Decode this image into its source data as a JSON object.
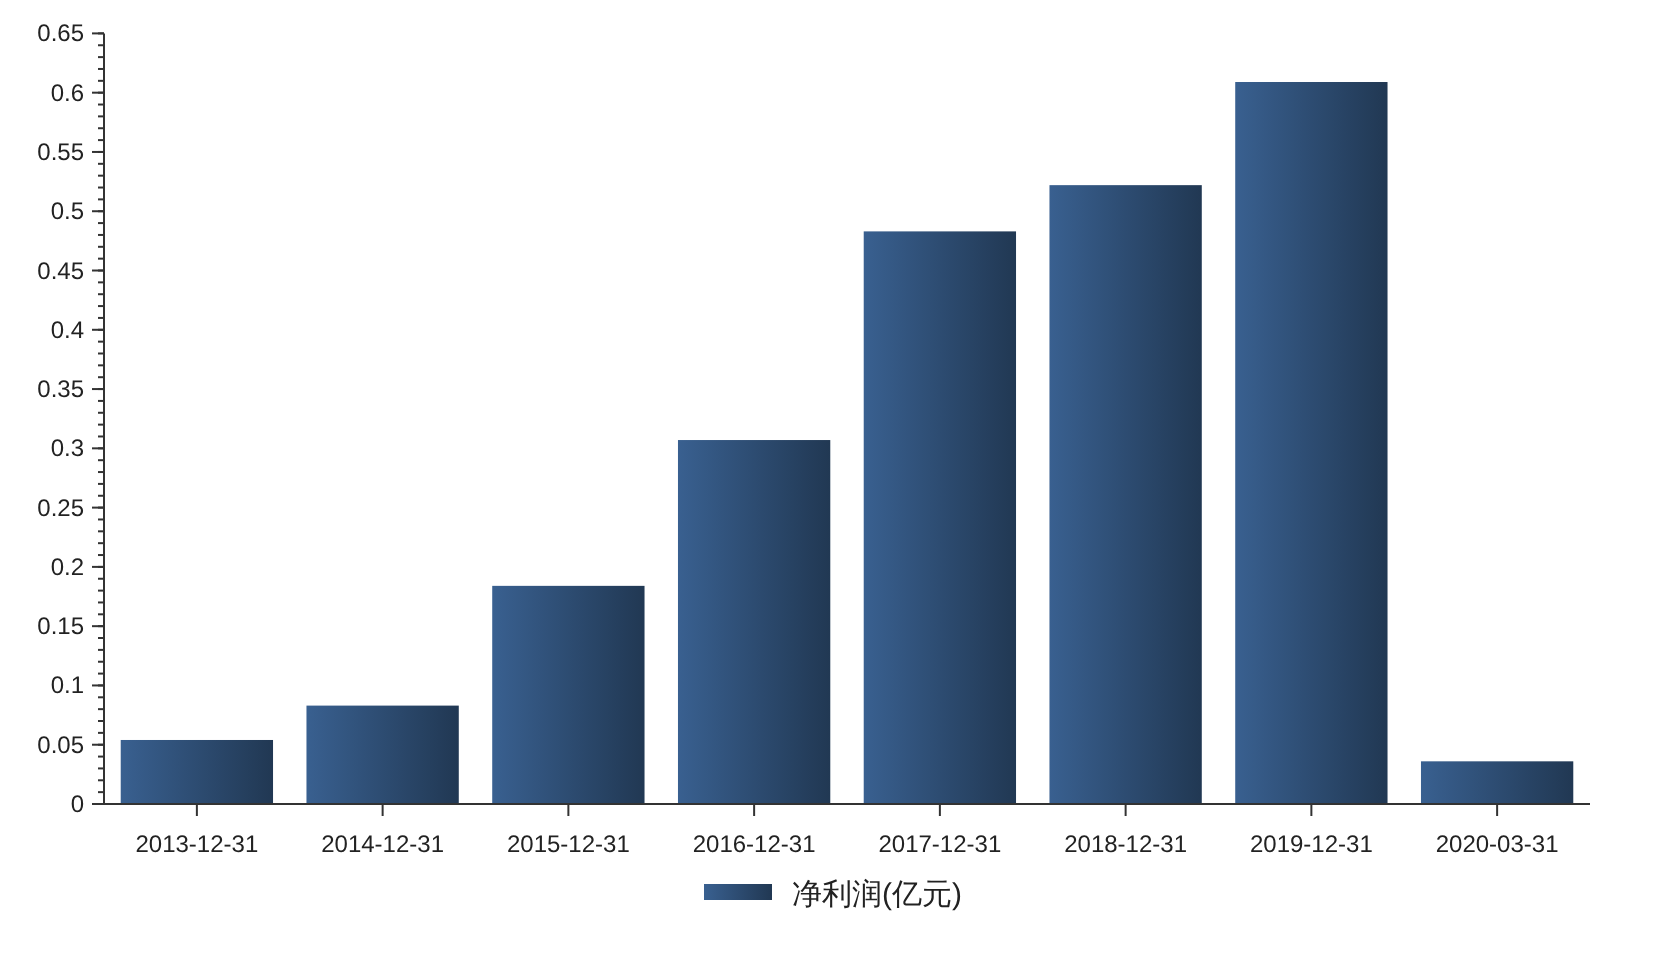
{
  "chart_data": {
    "type": "bar",
    "categories": [
      "2013-12-31",
      "2014-12-31",
      "2015-12-31",
      "2016-12-31",
      "2017-12-31",
      "2018-12-31",
      "2019-12-31",
      "2020-03-31"
    ],
    "series": [
      {
        "name": "净利润(亿元)",
        "color": "#2c4a6f",
        "values": [
          0.054,
          0.083,
          0.184,
          0.307,
          0.483,
          0.522,
          0.609,
          0.036
        ]
      }
    ],
    "ylim": [
      0,
      0.65
    ],
    "yticks": [
      0,
      0.05,
      0.1,
      0.15,
      0.2,
      0.25,
      0.3,
      0.35,
      0.4,
      0.45,
      0.5,
      0.55,
      0.6,
      0.65
    ],
    "grid": false,
    "legend": "bottom"
  }
}
